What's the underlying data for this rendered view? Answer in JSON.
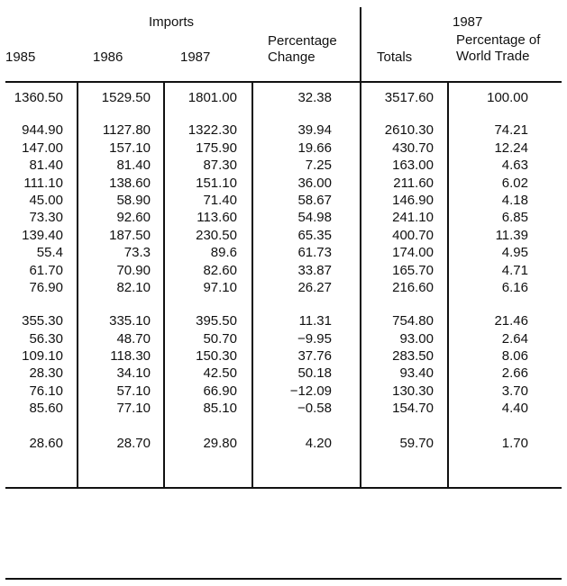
{
  "header": {
    "imports": "Imports",
    "y1985": "1985",
    "y1986": "1986",
    "y1987": "1987",
    "pct_change_1": "Percentage",
    "pct_change_2": "Change",
    "totals": "Totals",
    "world_year": "1987",
    "world_1": "Percentage of",
    "world_2": "World Trade"
  },
  "groups": [
    {
      "rows": [
        [
          "1360.50",
          "1529.50",
          "1801.00",
          "32.38",
          "3517.60",
          "100.00"
        ]
      ]
    },
    {
      "rows": [
        [
          "944.90",
          "1127.80",
          "1322.30",
          "39.94",
          "2610.30",
          "74.21"
        ],
        [
          "147.00",
          "157.10",
          "175.90",
          "19.66",
          "430.70",
          "12.24"
        ],
        [
          "81.40",
          "81.40",
          "87.30",
          "7.25",
          "163.00",
          "4.63"
        ],
        [
          "111.10",
          "138.60",
          "151.10",
          "36.00",
          "211.60",
          "6.02"
        ],
        [
          "45.00",
          "58.90",
          "71.40",
          "58.67",
          "146.90",
          "4.18"
        ],
        [
          "73.30",
          "92.60",
          "113.60",
          "54.98",
          "241.10",
          "6.85"
        ],
        [
          "139.40",
          "187.50",
          "230.50",
          "65.35",
          "400.70",
          "11.39"
        ],
        [
          "55.4",
          "73.3",
          "89.6",
          "61.73",
          "174.00",
          "4.95"
        ],
        [
          "61.70",
          "70.90",
          "82.60",
          "33.87",
          "165.70",
          "4.71"
        ],
        [
          "76.90",
          "82.10",
          "97.10",
          "26.27",
          "216.60",
          "6.16"
        ]
      ]
    },
    {
      "rows": [
        [
          "355.30",
          "335.10",
          "395.50",
          "11.31",
          "754.80",
          "21.46"
        ],
        [
          "56.30",
          "48.70",
          "50.70",
          "−9.95",
          "93.00",
          "2.64"
        ],
        [
          "109.10",
          "118.30",
          "150.30",
          "37.76",
          "283.50",
          "8.06"
        ],
        [
          "28.30",
          "34.10",
          "42.50",
          "50.18",
          "93.40",
          "2.66"
        ],
        [
          "76.10",
          "57.10",
          "66.90",
          "−12.09",
          "130.30",
          "3.70"
        ],
        [
          "85.60",
          "77.10",
          "85.10",
          "−0.58",
          "154.70",
          "4.40"
        ]
      ]
    },
    {
      "rows": [
        [
          "28.60",
          "28.70",
          "29.80",
          "4.20",
          "59.70",
          "1.70"
        ]
      ]
    }
  ]
}
